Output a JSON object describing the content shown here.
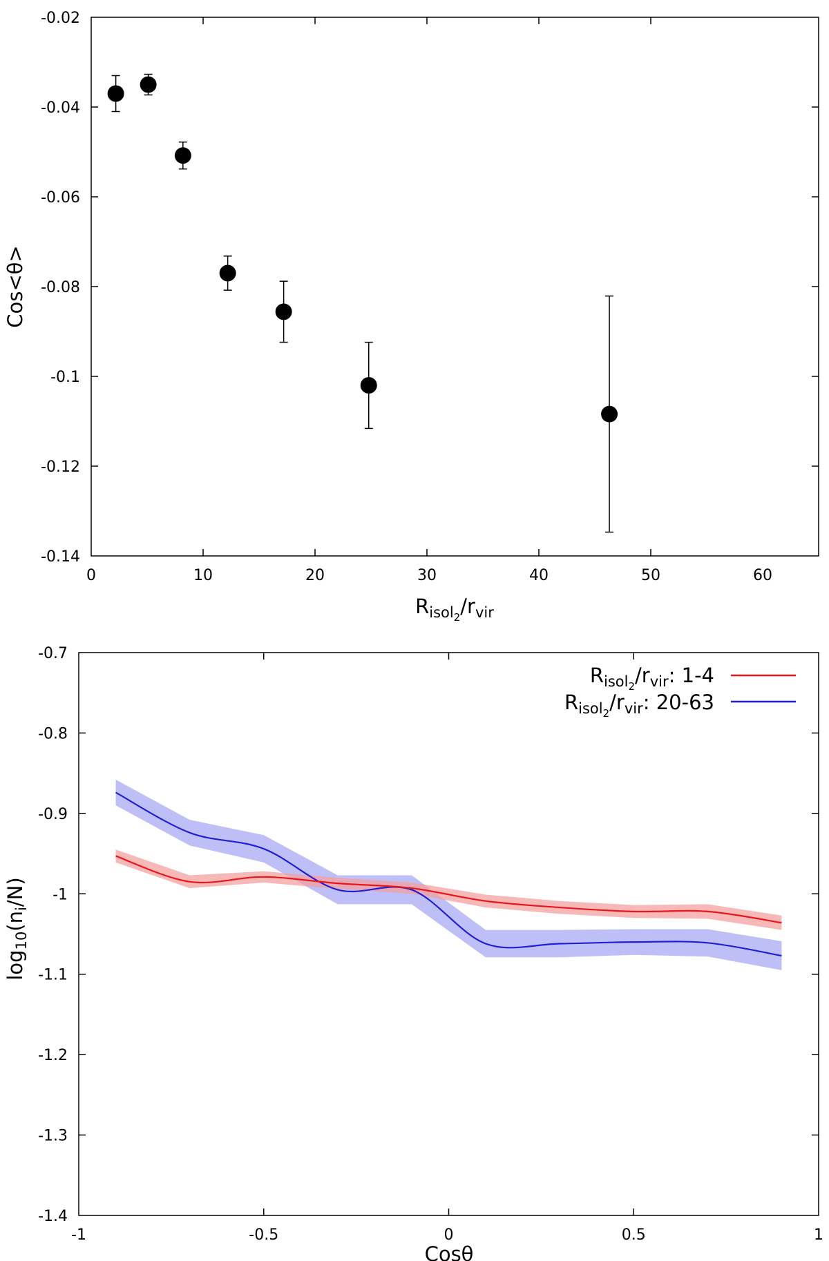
{
  "chart_data": [
    {
      "type": "scatter",
      "title": "",
      "xlabel": {
        "base": "R",
        "sub1": "isol",
        "sub2": "2",
        "sep": "/r",
        "sub3": "vir"
      },
      "ylabel": "Cos<θ>",
      "xlim": [
        0,
        65
      ],
      "ylim": [
        -0.14,
        -0.02
      ],
      "xticks": [
        0,
        10,
        20,
        30,
        40,
        50,
        60
      ],
      "yticks": [
        -0.14,
        -0.12,
        -0.1,
        -0.08,
        -0.06,
        -0.04,
        -0.02
      ],
      "xtick_labels": [
        "0",
        "10",
        "20",
        "30",
        "40",
        "50",
        "60"
      ],
      "ytick_labels": [
        "-0.14",
        "-0.12",
        "-0.1",
        "-0.08",
        "-0.06",
        "-0.04",
        "-0.02"
      ],
      "grid": false,
      "points": [
        {
          "x": 2.2,
          "y": -0.037,
          "err": 0.004
        },
        {
          "x": 5.1,
          "y": -0.035,
          "err": 0.0023
        },
        {
          "x": 8.2,
          "y": -0.0508,
          "err": 0.003
        },
        {
          "x": 12.2,
          "y": -0.077,
          "err": 0.0038
        },
        {
          "x": 17.2,
          "y": -0.0856,
          "err": 0.0068
        },
        {
          "x": 24.8,
          "y": -0.102,
          "err": 0.0096
        },
        {
          "x": 46.3,
          "y": -0.1084,
          "err": 0.0263
        }
      ]
    },
    {
      "type": "line",
      "title": "",
      "xlabel": "Cosθ",
      "ylabel": {
        "base": "log",
        "sub1": "10",
        "open": "(n",
        "sub2": "i",
        "close": "/N)"
      },
      "xlim": [
        -1,
        1
      ],
      "ylim": [
        -1.4,
        -0.7
      ],
      "xticks": [
        -1,
        -0.5,
        0,
        0.5,
        1
      ],
      "yticks": [
        -1.4,
        -1.3,
        -1.2,
        -1.1,
        -1.0,
        -0.9,
        -0.8,
        -0.7
      ],
      "xtick_labels": [
        "-1",
        "-0.5",
        "0",
        "0.5",
        "1"
      ],
      "ytick_labels": [
        "-1.4",
        "-1.3",
        "-1.2",
        "-1.1",
        "-1",
        "-0.9",
        "-0.8",
        "-0.7"
      ],
      "grid": false,
      "legend_position": "top-right",
      "series": [
        {
          "name": "Risol2/rvir: 1-4",
          "label": {
            "base": "R",
            "sub1": "isol",
            "sub2": "2",
            "sep": "/r",
            "sub3": "vir",
            "suffix": ": 1-4"
          },
          "color": "#e8161b",
          "band_color": "#f4a0a0",
          "x": [
            -0.9,
            -0.7,
            -0.5,
            -0.3,
            -0.1,
            0.1,
            0.3,
            0.5,
            0.7,
            0.9
          ],
          "y": [
            -0.953,
            -0.985,
            -0.979,
            -0.987,
            -0.993,
            -1.009,
            -1.017,
            -1.022,
            -1.022,
            -1.036
          ],
          "hw": [
            0.008,
            0.008,
            0.007,
            0.007,
            0.007,
            0.008,
            0.008,
            0.008,
            0.009,
            0.009
          ]
        },
        {
          "name": "Risol2/rvir: 20-63",
          "label": {
            "base": "R",
            "sub1": "isol",
            "sub2": "2",
            "sep": "/r",
            "sub3": "vir",
            "suffix": ": 20-63"
          },
          "color": "#1f1fd6",
          "band_color": "#a9a9f4",
          "x": [
            -0.9,
            -0.7,
            -0.5,
            -0.3,
            -0.1,
            0.1,
            0.3,
            0.5,
            0.7,
            0.9
          ],
          "y": [
            -0.874,
            -0.924,
            -0.944,
            -0.995,
            -0.995,
            -1.062,
            -1.062,
            -1.06,
            -1.061,
            -1.077
          ],
          "hw": [
            0.016,
            0.016,
            0.017,
            0.018,
            0.018,
            0.017,
            0.017,
            0.016,
            0.017,
            0.018
          ]
        }
      ]
    }
  ]
}
